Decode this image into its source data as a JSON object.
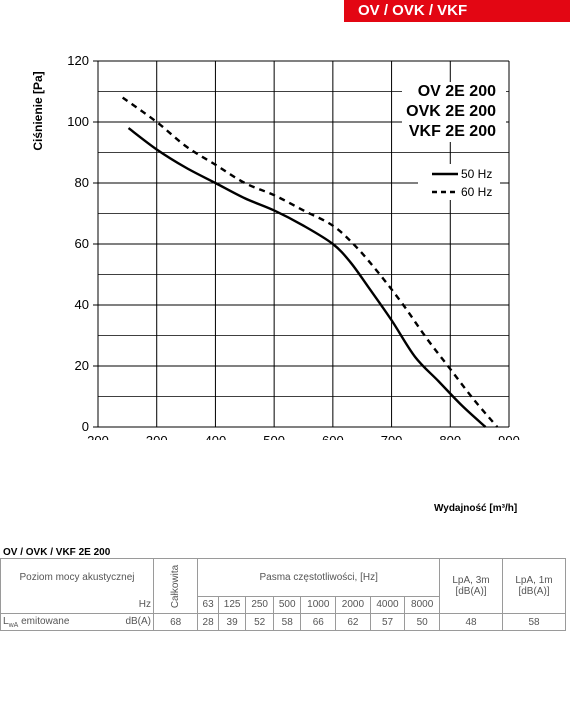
{
  "header": {
    "models_tab": "OV / OVK / VKF"
  },
  "chart_data": {
    "type": "line",
    "title_lines": [
      "OV 2E 200",
      "OVK 2E 200",
      "VKF 2E 200"
    ],
    "xlabel": "Wydajność [m³/h]",
    "ylabel": "Ciśnienie [Pa]",
    "xlim": [
      200,
      900
    ],
    "ylim": [
      0,
      120
    ],
    "xticks": [
      200,
      300,
      400,
      500,
      600,
      700,
      800,
      900
    ],
    "yticks": [
      0,
      20,
      40,
      60,
      80,
      100,
      120
    ],
    "grid": true,
    "legend_position": "right",
    "series": [
      {
        "name": "50 Hz",
        "style": "solid",
        "x": [
          252,
          300,
          350,
          400,
          450,
          500,
          550,
          600,
          630,
          660,
          700,
          740,
          780,
          820,
          860
        ],
        "y": [
          98,
          91,
          85,
          80,
          75,
          71,
          66,
          60,
          54,
          46,
          35,
          23,
          15,
          7,
          0
        ]
      },
      {
        "name": "60 Hz",
        "style": "dashed",
        "x": [
          242,
          300,
          350,
          400,
          450,
          500,
          550,
          600,
          640,
          680,
          720,
          760,
          800,
          840,
          880
        ],
        "y": [
          108,
          100,
          92,
          86,
          80,
          76,
          71,
          66,
          59,
          50,
          40,
          29,
          19,
          9,
          0
        ]
      }
    ]
  },
  "table": {
    "title": "OV / OVK / VKF 2E 200",
    "row_label": "Poziom mocy akustycznej",
    "total_label": "Całkowita",
    "bands_label": "Pasma częstotliwości, [Hz]",
    "lpa3_label": "LpA, 3m",
    "lpa1_label": "LpA, 1m",
    "lpa_unit": "[dB(A)]",
    "hz_label": "Hz",
    "bands": [
      "63",
      "125",
      "250",
      "500",
      "1000",
      "2000",
      "4000",
      "8000"
    ],
    "emit_label_main": "L",
    "emit_label_sub": "wA",
    "emit_label_rest": " emitowane",
    "emit_unit": "dB(A)",
    "total_value": "68",
    "band_values": [
      "28",
      "39",
      "52",
      "58",
      "66",
      "62",
      "57",
      "50"
    ],
    "lpa3_value": "48",
    "lpa1_value": "58"
  }
}
